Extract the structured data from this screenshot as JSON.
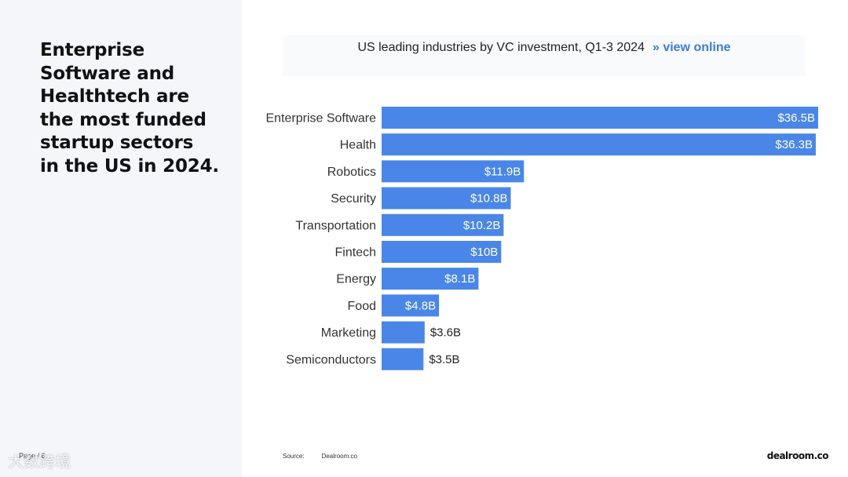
{
  "headline": {
    "line1": "Enterprise",
    "line2": "Software and",
    "line3": "Healthtech are",
    "line4": "the most funded",
    "line5": "startup sectors",
    "line6": "in the US in 2024."
  },
  "page_label": "Page / 6",
  "watermark": "大数跨境",
  "chart_header": {
    "title": "US leading industries by VC investment, Q1-3 2024",
    "link_label": "» view online"
  },
  "source": {
    "label": "Source:",
    "value": "Dealroom.co"
  },
  "brand": "dealroom.co",
  "colors": {
    "bar": "#4a86e8",
    "accent_link": "#3b7dd8",
    "left_panel_bg": "#f4f6fa"
  },
  "chart_data": {
    "type": "bar",
    "orientation": "horizontal",
    "title": "US leading industries by VC investment, Q1-3 2024",
    "categories": [
      "Enterprise Software",
      "Health",
      "Robotics",
      "Security",
      "Transportation",
      "Fintech",
      "Energy",
      "Food",
      "Marketing",
      "Semiconductors"
    ],
    "values": [
      36.5,
      36.3,
      11.9,
      10.8,
      10.2,
      10,
      8.1,
      4.8,
      3.6,
      3.5
    ],
    "value_labels": [
      "$36.5B",
      "$36.3B",
      "$11.9B",
      "$10.8B",
      "$10.2B",
      "$10B",
      "$8.1B",
      "$4.8B",
      "$3.6B",
      "$3.5B"
    ],
    "unit": "B USD",
    "xlim": [
      0,
      36.5
    ],
    "grid": false,
    "legend": "none"
  }
}
